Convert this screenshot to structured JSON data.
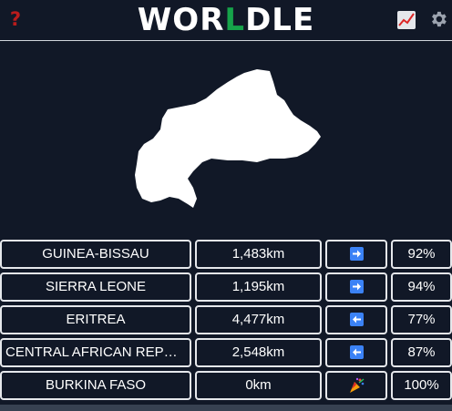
{
  "header": {
    "help_label": "?",
    "title_prefix": "WOR",
    "title_accent": "L",
    "title_suffix": "DLE",
    "accent_color": "#16a34a",
    "help_color": "#b91c1c"
  },
  "icons": {
    "help": "help-icon",
    "stats": "chart-icon",
    "settings": "gear-icon"
  },
  "guesses": [
    {
      "name": "GUINEA-BISSAU",
      "distance": "1,483km",
      "direction": "east",
      "percent": "92%"
    },
    {
      "name": "SIERRA LEONE",
      "distance": "1,195km",
      "direction": "east",
      "percent": "94%"
    },
    {
      "name": "ERITREA",
      "distance": "4,477km",
      "direction": "west",
      "percent": "77%"
    },
    {
      "name": "CENTRAL AFRICAN REPUBL...",
      "distance": "2,548km",
      "direction": "west",
      "percent": "87%"
    },
    {
      "name": "BURKINA FASO",
      "distance": "0km",
      "direction": "party",
      "percent": "100%"
    }
  ],
  "colors": {
    "background": "#111827",
    "border": "#e5e7eb",
    "arrow_bg": "#3b82f6"
  }
}
